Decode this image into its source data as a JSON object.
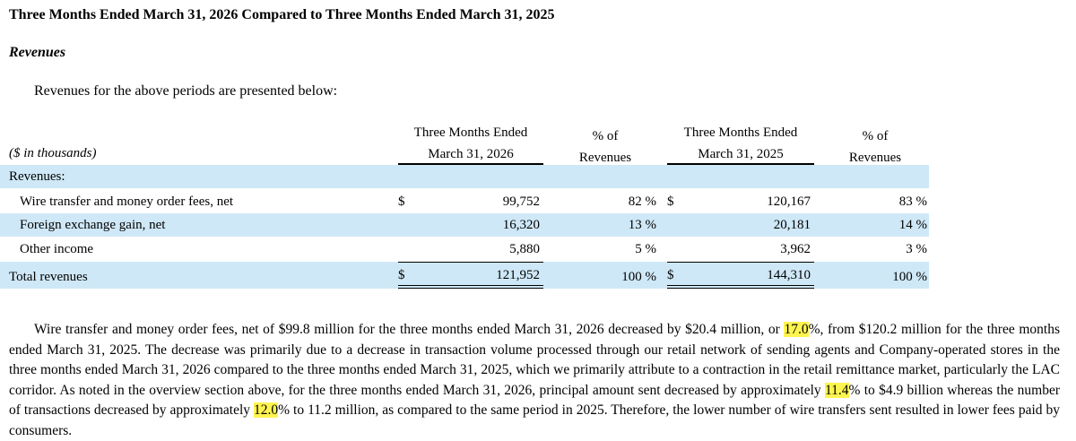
{
  "heading": "Three Months Ended March 31, 2026 Compared to Three Months Ended March 31, 2025",
  "subheading": "Revenues",
  "intro": "Revenues for the above periods are presented below:",
  "table": {
    "units_label": "($ in thousands)",
    "col_2026": [
      "Three Months Ended",
      "March 31, 2026"
    ],
    "col_pct1": [
      "% of",
      "Revenues"
    ],
    "col_2025": [
      "Three Months Ended",
      "March 31, 2025"
    ],
    "col_pct2": [
      "% of",
      "Revenues"
    ],
    "section_label": "Revenues:",
    "rows": [
      {
        "label": "Wire transfer and money order fees, net",
        "cur1": "$",
        "v2026": "99,752",
        "p2026": "82 %",
        "cur2": "$",
        "v2025": "120,167",
        "p2025": "83 %"
      },
      {
        "label": "Foreign exchange gain, net",
        "cur1": "",
        "v2026": "16,320",
        "p2026": "13 %",
        "cur2": "",
        "v2025": "20,181",
        "p2025": "14 %"
      },
      {
        "label": "Other income",
        "cur1": "",
        "v2026": "5,880",
        "p2026": "5 %",
        "cur2": "",
        "v2025": "3,962",
        "p2025": "3 %"
      }
    ],
    "total": {
      "label": "Total revenues",
      "cur1": "$",
      "v2026": "121,952",
      "p2026": "100 %",
      "cur2": "$",
      "v2025": "144,310",
      "p2025": "100 %"
    }
  },
  "paragraph": {
    "t1": "Wire transfer and money order fees, net of $99.8 million for the three months ended March 31, 2026 decreased by $20.4 million, or ",
    "h1": "17.0",
    "t2": "%, from $120.2 million for the three months ended March 31, 2025. The decrease was primarily due to a decrease in transaction volume processed through our retail network of sending agents and Company-operated stores in the three months ended March 31, 2026 compared to the three months ended March 31, 2025, which we primarily attribute to a contraction in the retail remittance market, particularly the LAC corridor. As noted in the overview section above, for the three months ended March 31, 2026, principal amount sent decreased by approximately ",
    "h2": "11.4",
    "t3": "% to $4.9 billion whereas the number of transactions decreased by approximately ",
    "h3": "12.0",
    "t4": "% to 11.2 million, as compared to the same period in 2025. Therefore, the lower number of wire transfers sent resulted in lower fees paid by consumers."
  },
  "colors": {
    "band": "#cfe8f7",
    "highlight": "#fff44f"
  }
}
